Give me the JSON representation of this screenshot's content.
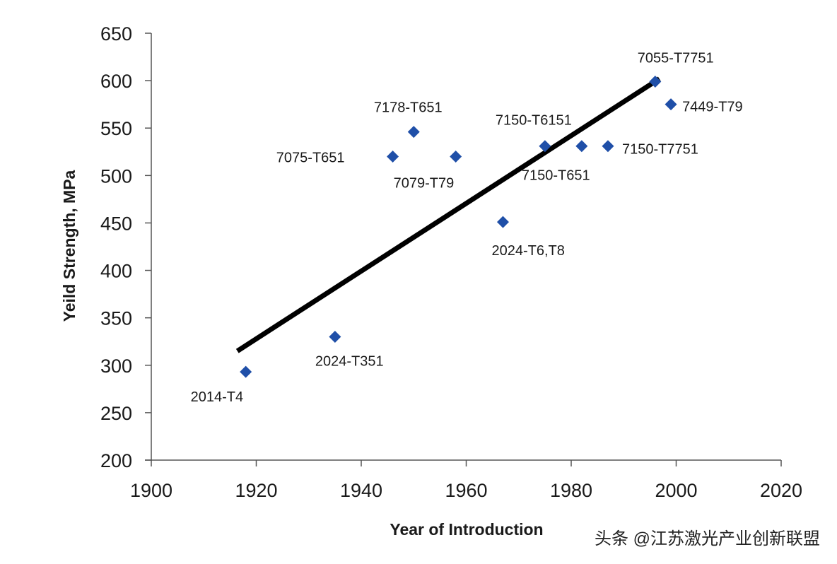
{
  "chart_data": {
    "type": "scatter",
    "title": "",
    "xlabel": "Year of Introduction",
    "ylabel": "Yeild Strength, MPa",
    "xlim": [
      1900,
      2020
    ],
    "ylim": [
      200,
      650
    ],
    "xticks": [
      "1900",
      "1920",
      "1940",
      "1960",
      "1980",
      "2000",
      "2020"
    ],
    "yticks": [
      "200",
      "250",
      "300",
      "350",
      "400",
      "450",
      "500",
      "550",
      "600",
      "650"
    ],
    "grid": false,
    "legend": "none",
    "marker_color": "#1f4fa8",
    "points": [
      {
        "label": "2014-T4",
        "x": 1918,
        "y": 293
      },
      {
        "label": "2024-T351",
        "x": 1935,
        "y": 330
      },
      {
        "label": "7075-T651",
        "x": 1946,
        "y": 520
      },
      {
        "label": "7178-T651",
        "x": 1950,
        "y": 546
      },
      {
        "label": "7079-T79",
        "x": 1958,
        "y": 520
      },
      {
        "label": "2024-T6,T8",
        "x": 1967,
        "y": 451
      },
      {
        "label": "7150-T6151",
        "x": 1975,
        "y": 531
      },
      {
        "label": "7150-T651",
        "x": 1982,
        "y": 531
      },
      {
        "label": "7150-T7751",
        "x": 1987,
        "y": 531
      },
      {
        "label": "7055-T7751",
        "x": 1996,
        "y": 599
      },
      {
        "label": "7449-T79",
        "x": 1999,
        "y": 575
      }
    ],
    "trendline": {
      "color": "#000000",
      "x": [
        1916.4,
        1996.8
      ],
      "y": [
        315,
        602
      ]
    }
  },
  "watermark": "头条 @江苏激光产业创新联盟"
}
